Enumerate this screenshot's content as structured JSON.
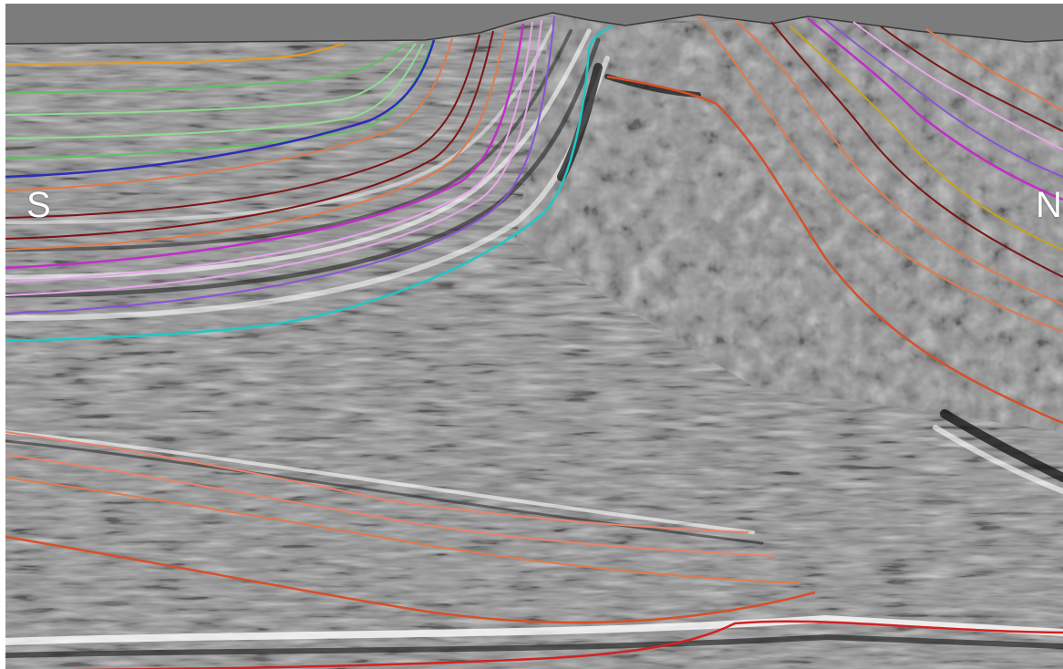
{
  "labels": {
    "south": "S",
    "north": "N"
  },
  "colors": {
    "frame": "#ffffff",
    "seismic_mid": "#8e8e8e",
    "header_band": "#7c7c7c",
    "horizons": [
      "#e89a1a",
      "#5fbf5f",
      "#8fdc8f",
      "#2d2db8",
      "#e07a4a",
      "#7a1515",
      "#c02ec8",
      "#e7a6ea",
      "#8c52d6",
      "#21c7c7",
      "#c9a21a",
      "#d6502a",
      "#d22222",
      "#e8846a"
    ]
  },
  "icons": {
    "section": "seismic-section-image"
  }
}
